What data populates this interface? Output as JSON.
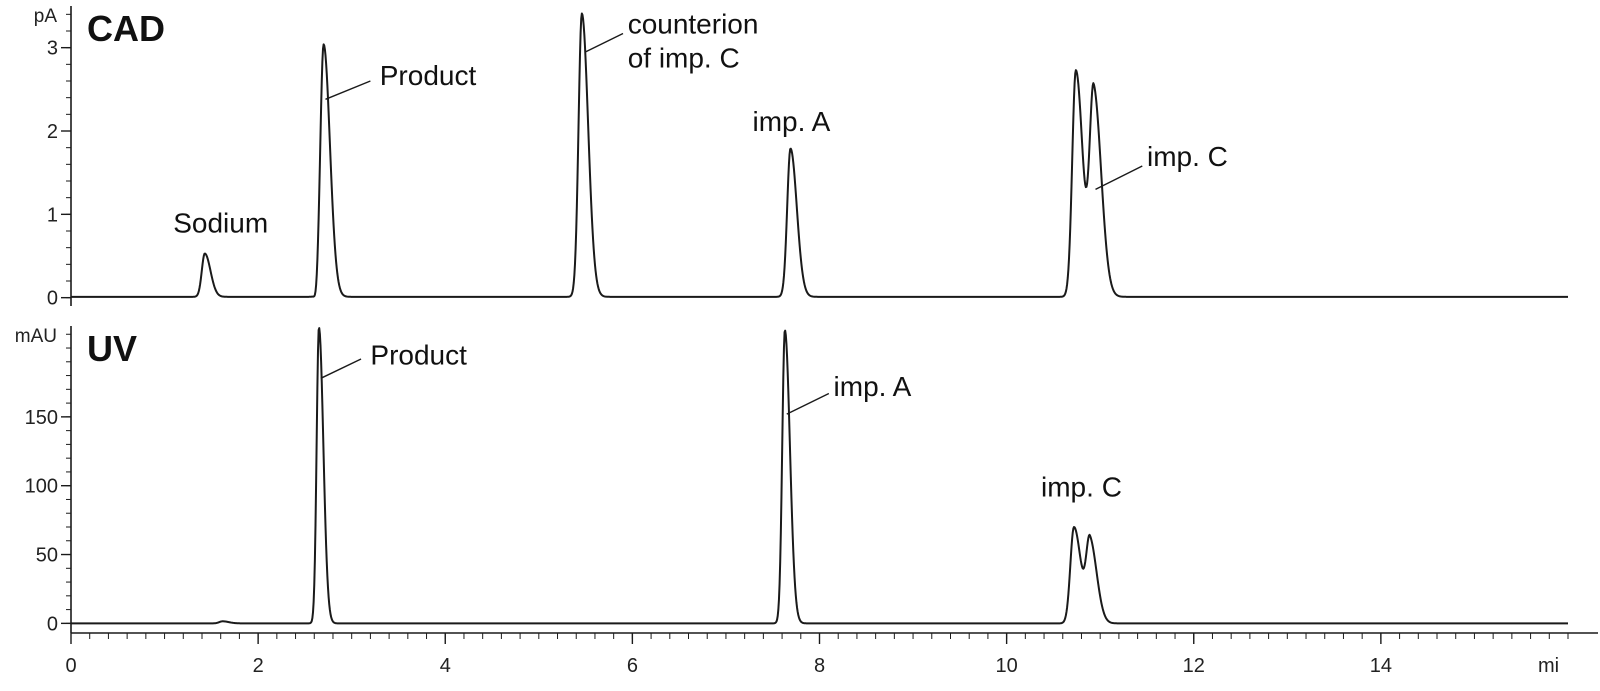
{
  "chart_data": [
    {
      "type": "line",
      "title": "CAD",
      "ylabel": "pA",
      "xlim": [
        0,
        16
      ],
      "ylim": [
        -0.1,
        3.5
      ],
      "yticks": [
        0,
        1,
        2,
        3
      ],
      "grid": false,
      "baseline": 0.01,
      "peaks": [
        {
          "name": "Sodium",
          "rt": 1.43,
          "height": 0.52,
          "width": 0.045
        },
        {
          "name": "Product",
          "rt": 2.7,
          "height": 3.03,
          "width": 0.05,
          "dip": -0.09
        },
        {
          "name": "counterion of imp. C",
          "rt": 5.46,
          "height": 3.4,
          "width": 0.05
        },
        {
          "name": "imp. A",
          "rt": 7.69,
          "height": 1.78,
          "width": 0.05
        },
        {
          "name": "imp. C (1)",
          "rt": 10.74,
          "height": 2.72,
          "width": 0.055
        },
        {
          "name": "imp. C (2)",
          "rt": 10.93,
          "height": 2.46,
          "width": 0.06
        }
      ],
      "annotations": [
        {
          "text": [
            "Sodium"
          ],
          "x": 1.6,
          "y": 0.78,
          "anchor": "middle"
        },
        {
          "text": [
            "Product"
          ],
          "x": 3.3,
          "y": 2.55,
          "anchor": "start",
          "leader": [
            [
              2.72,
              2.38
            ],
            [
              3.2,
              2.6
            ]
          ]
        },
        {
          "text": [
            "counterion",
            "of imp. C"
          ],
          "x": 5.95,
          "y": 3.17,
          "anchor": "start",
          "leader": [
            [
              5.5,
              2.95
            ],
            [
              5.9,
              3.17
            ]
          ]
        },
        {
          "text": [
            "imp. A"
          ],
          "x": 7.7,
          "y": 2.0,
          "anchor": "middle"
        },
        {
          "text": [
            "imp. C"
          ],
          "x": 11.5,
          "y": 1.58,
          "anchor": "start",
          "leader": [
            [
              10.95,
              1.3
            ],
            [
              11.45,
              1.58
            ]
          ]
        }
      ]
    },
    {
      "type": "line",
      "title": "UV",
      "ylabel": "mAU",
      "xlim": [
        0,
        16
      ],
      "ylim": [
        -7,
        216
      ],
      "yticks": [
        0,
        50,
        100,
        150
      ],
      "grid": false,
      "baseline": 0,
      "peaks": [
        {
          "name": "Product",
          "rt": 2.65,
          "height": 215,
          "width": 0.035
        },
        {
          "name": "imp. A",
          "rt": 7.63,
          "height": 213,
          "width": 0.04
        },
        {
          "name": "imp. C (1)",
          "rt": 10.72,
          "height": 70,
          "width": 0.055
        },
        {
          "name": "imp. C (2)",
          "rt": 10.89,
          "height": 59,
          "width": 0.055
        },
        {
          "name": "minor",
          "rt": 1.62,
          "height": 1.5,
          "width": 0.05
        }
      ],
      "annotations": [
        {
          "text": [
            "Product"
          ],
          "x": 3.2,
          "y": 188,
          "anchor": "start",
          "leader": [
            [
              2.67,
              178
            ],
            [
              3.1,
              192
            ]
          ]
        },
        {
          "text": [
            "imp. A"
          ],
          "x": 8.15,
          "y": 165,
          "anchor": "start",
          "leader": [
            [
              7.65,
              152
            ],
            [
              8.1,
              167
            ]
          ]
        },
        {
          "text": [
            "imp. C"
          ],
          "x": 10.8,
          "y": 92,
          "anchor": "middle"
        }
      ]
    }
  ],
  "x_axis": {
    "ticks": [
      0,
      2,
      4,
      6,
      8,
      10,
      12,
      14
    ],
    "unit": "mi"
  }
}
